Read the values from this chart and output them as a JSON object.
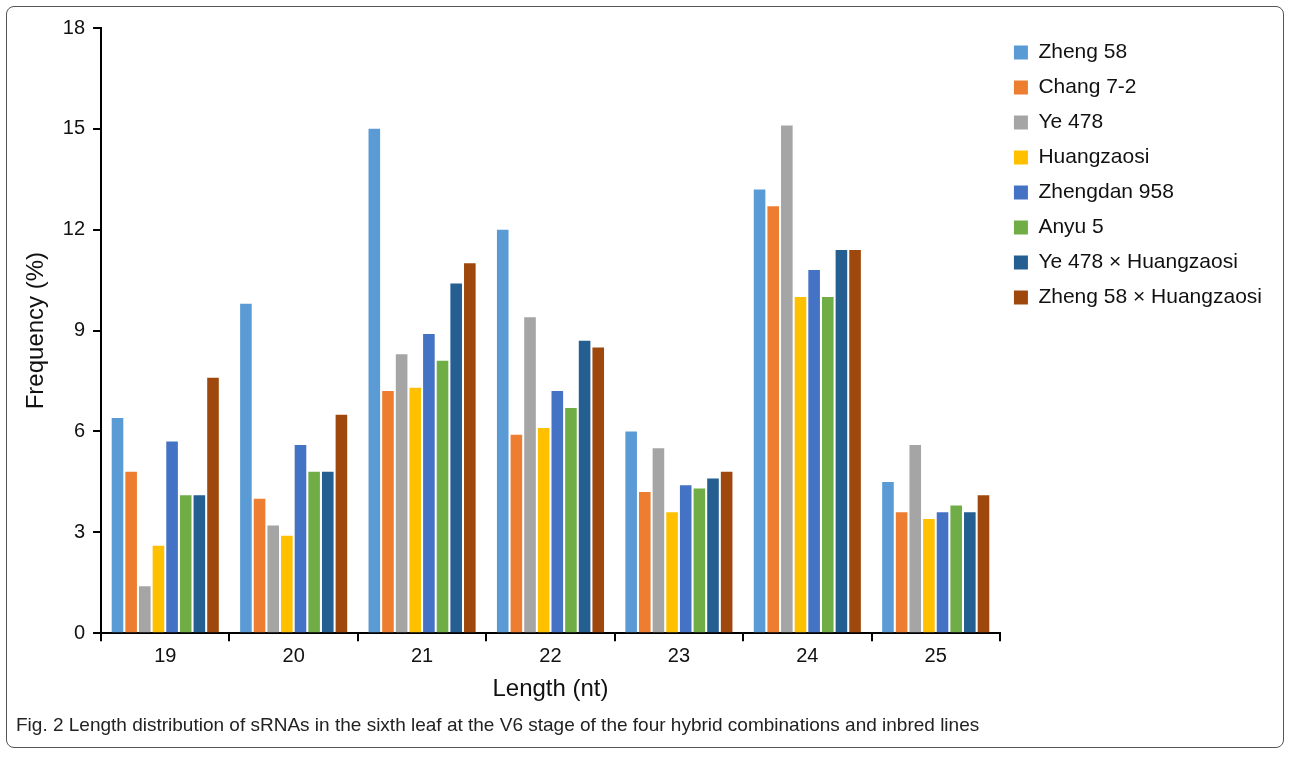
{
  "chart_data": {
    "type": "bar",
    "xlabel": "Length (nt)",
    "ylabel": "Frequency (%)",
    "categories": [
      "19",
      "20",
      "21",
      "22",
      "23",
      "24",
      "25"
    ],
    "series": [
      {
        "name": "Zheng 58",
        "color": "#5b9bd5",
        "values": [
          6.4,
          9.8,
          15.0,
          12.0,
          6.0,
          13.2,
          4.5
        ]
      },
      {
        "name": "Chang 7-2",
        "color": "#ed7d31",
        "values": [
          4.8,
          4.0,
          7.2,
          5.9,
          4.2,
          12.7,
          3.6
        ]
      },
      {
        "name": "Ye 478",
        "color": "#a5a5a5",
        "values": [
          1.4,
          3.2,
          8.3,
          9.4,
          5.5,
          15.1,
          5.6
        ]
      },
      {
        "name": "Huangzaosi",
        "color": "#ffc000",
        "values": [
          2.6,
          2.9,
          7.3,
          6.1,
          3.6,
          10.0,
          3.4
        ]
      },
      {
        "name": "Zhengdan 958",
        "color": "#4472c4",
        "values": [
          5.7,
          5.6,
          8.9,
          7.2,
          4.4,
          10.8,
          3.6
        ]
      },
      {
        "name": "Anyu 5",
        "color": "#70ad47",
        "values": [
          4.1,
          4.8,
          8.1,
          6.7,
          4.3,
          10.0,
          3.8
        ]
      },
      {
        "name": "Ye 478 × Huangzaosi",
        "color": "#255e91",
        "values": [
          4.1,
          4.8,
          10.4,
          8.7,
          4.6,
          11.4,
          3.6
        ]
      },
      {
        "name": "Zheng 58 × Huangzaosi",
        "color": "#9e480e",
        "values": [
          7.6,
          6.5,
          11.0,
          8.5,
          4.8,
          11.4,
          4.1
        ]
      }
    ],
    "ylim": [
      0,
      18
    ],
    "yticks": [
      0,
      3,
      6,
      9,
      12,
      15,
      18
    ],
    "legend": "top right",
    "annotations": [
      "Fig. 2 Length distribution of sRNAs in the sixth leaf at the V6 stage of the four hybrid combinations and inbred lines"
    ]
  }
}
